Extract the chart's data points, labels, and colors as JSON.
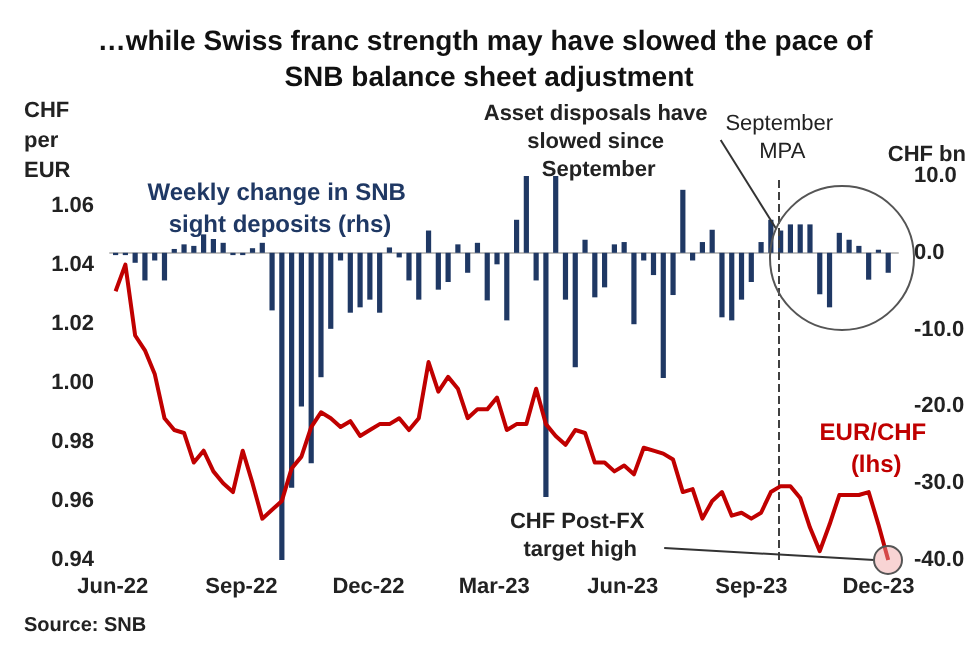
{
  "chart_data": {
    "type": "bar",
    "title": "…while Swiss franc strength may have slowed the pace of SNB balance sheet adjustment",
    "ylabel": "CHF per EUR",
    "y2label": "CHF bn",
    "x": [
      "2022-06-03",
      "2022-06-10",
      "2022-06-17",
      "2022-06-24",
      "2022-07-01",
      "2022-07-08",
      "2022-07-15",
      "2022-07-22",
      "2022-07-29",
      "2022-08-05",
      "2022-08-12",
      "2022-08-19",
      "2022-08-26",
      "2022-09-02",
      "2022-09-09",
      "2022-09-16",
      "2022-09-23",
      "2022-09-30",
      "2022-10-07",
      "2022-10-14",
      "2022-10-21",
      "2022-10-28",
      "2022-11-04",
      "2022-11-11",
      "2022-11-18",
      "2022-11-25",
      "2022-12-02",
      "2022-12-09",
      "2022-12-16",
      "2022-12-23",
      "2022-12-30",
      "2023-01-06",
      "2023-01-13",
      "2023-01-20",
      "2023-01-27",
      "2023-02-03",
      "2023-02-10",
      "2023-02-17",
      "2023-02-24",
      "2023-03-03",
      "2023-03-10",
      "2023-03-17",
      "2023-03-24",
      "2023-03-31",
      "2023-04-07",
      "2023-04-14",
      "2023-04-21",
      "2023-04-28",
      "2023-05-05",
      "2023-05-12",
      "2023-05-19",
      "2023-05-26",
      "2023-06-02",
      "2023-06-09",
      "2023-06-16",
      "2023-06-23",
      "2023-06-30",
      "2023-07-07",
      "2023-07-14",
      "2023-07-21",
      "2023-07-28",
      "2023-08-04",
      "2023-08-11",
      "2023-08-18",
      "2023-08-25",
      "2023-09-01",
      "2023-09-08",
      "2023-09-15",
      "2023-09-22",
      "2023-09-29",
      "2023-10-06",
      "2023-10-13",
      "2023-10-20",
      "2023-10-27",
      "2023-11-03",
      "2023-11-10",
      "2023-11-17",
      "2023-11-24",
      "2023-12-01",
      "2023-12-08"
    ],
    "series": [
      {
        "name": "Weekly change in SNB sight deposits (rhs)",
        "axis": "y2",
        "color": "#1f3864",
        "values": [
          -0.3,
          -0.3,
          -1.3,
          -3.6,
          -1.0,
          -3.6,
          0.5,
          1.1,
          0.9,
          2.4,
          1.8,
          1.3,
          -0.3,
          -0.3,
          0.6,
          1.3,
          -7.5,
          -40,
          -30.6,
          -20,
          -27.4,
          -16.2,
          -9.9,
          -1.0,
          -7.8,
          -7.1,
          -6.1,
          -7.8,
          0.7,
          -0.6,
          -3.6,
          -6.1,
          2.9,
          -4.8,
          -3.8,
          1.1,
          -2.6,
          1.3,
          -6.2,
          -1.5,
          -8.8,
          4.3,
          10.0,
          -3.6,
          -31.8,
          10.0,
          -6.1,
          -14.9,
          1.7,
          -5.8,
          -4.5,
          1.1,
          1.4,
          -9.3,
          -1.0,
          -2.9,
          -16.3,
          -5.5,
          8.2,
          -1.0,
          1.4,
          3.0,
          -8.4,
          -8.8,
          -6.1,
          -3.8,
          1.4,
          4.3,
          2.9,
          3.7,
          3.7,
          3.7,
          -5.4,
          -7.1,
          2.6,
          1.7,
          0.9,
          -3.5,
          0.4,
          -2.6
        ]
      },
      {
        "name": "EUR/CHF (lhs)",
        "type": "line",
        "color": "#c00000",
        "values": [
          1.031,
          1.04,
          1.016,
          1.011,
          1.003,
          0.988,
          0.984,
          0.983,
          0.973,
          0.977,
          0.97,
          0.966,
          0.963,
          0.977,
          0.966,
          0.954,
          0.957,
          0.96,
          0.971,
          0.975,
          0.985,
          0.99,
          0.988,
          0.985,
          0.987,
          0.982,
          0.984,
          0.986,
          0.986,
          0.988,
          0.984,
          0.988,
          1.007,
          0.997,
          1.002,
          0.998,
          0.988,
          0.991,
          0.991,
          0.995,
          0.984,
          0.986,
          0.986,
          0.998,
          0.986,
          0.982,
          0.979,
          0.984,
          0.983,
          0.973,
          0.973,
          0.97,
          0.972,
          0.969,
          0.978,
          0.977,
          0.976,
          0.974,
          0.963,
          0.964,
          0.954,
          0.96,
          0.963,
          0.955,
          0.956,
          0.954,
          0.956,
          0.963,
          0.965,
          0.965,
          0.961,
          0.951,
          0.943,
          0.952,
          0.962,
          0.962,
          0.962,
          0.963,
          0.952,
          0.94
        ]
      }
    ],
    "xlim": [
      "2022-05-30",
      "2023-12-15"
    ],
    "xticks": [
      {
        "value": "2022-06-01",
        "label": "Jun-22"
      },
      {
        "value": "2022-09-01",
        "label": "Sep-22"
      },
      {
        "value": "2022-12-01",
        "label": "Dec-22"
      },
      {
        "value": "2023-03-01",
        "label": "Mar-23"
      },
      {
        "value": "2023-06-01",
        "label": "Jun-23"
      },
      {
        "value": "2023-09-01",
        "label": "Sep-23"
      },
      {
        "value": "2023-12-01",
        "label": "Dec-23"
      }
    ],
    "ylim": [
      0.94,
      1.07
    ],
    "yticks": [
      0.94,
      0.96,
      0.98,
      {
        "value": 1.0,
        "label": "1.00"
      },
      1.02,
      1.04,
      1.06
    ],
    "y2lim": [
      -40,
      10
    ],
    "y2ticks": [
      {
        "value": -40,
        "label": "-40.0"
      },
      {
        "value": -30,
        "label": "-30.0"
      },
      {
        "value": -20,
        "label": "-20.0"
      },
      {
        "value": -10,
        "label": "-10.0"
      },
      {
        "value": 0,
        "label": "0.0"
      },
      {
        "value": 10,
        "label": "10.0"
      }
    ],
    "ref_lines": [
      {
        "axis": "x",
        "value": "2023-09-21",
        "label": "September MPA",
        "color": "#404040",
        "line_style": "dashed"
      }
    ],
    "annotations": [
      {
        "text": "Asset disposals have slowed since September",
        "x": "2023-09-19",
        "y": 1.052
      },
      {
        "text": "CHF Post-FX target high",
        "x": "2023-12-08",
        "y": 0.94
      },
      "Source: SNB"
    ],
    "marker": "none"
  }
}
